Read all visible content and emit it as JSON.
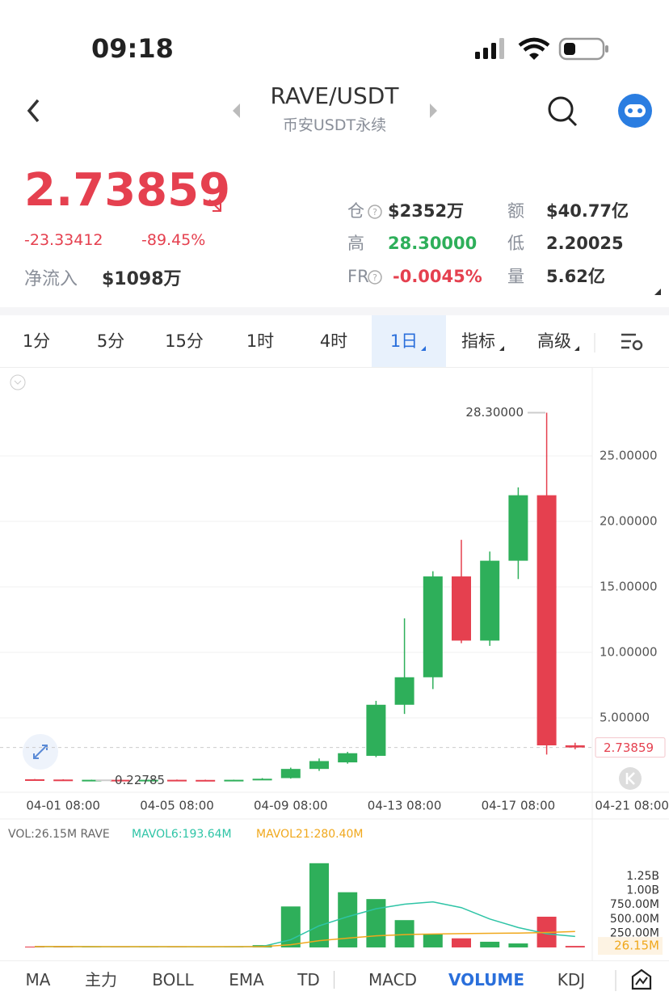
{
  "status_bar": {
    "time": "09:18"
  },
  "header": {
    "title": "RAVE/USDT",
    "subtitle": "币安USDT永续"
  },
  "price": {
    "last": "2.73859",
    "change": "-23.33412",
    "change_pct": "-89.45%",
    "net_inflow_label": "净流入",
    "net_inflow": "$1098万"
  },
  "stats": [
    {
      "label": "仓",
      "value": "$2352万"
    },
    {
      "label": "额",
      "value": "$40.77亿"
    },
    {
      "label": "高",
      "value": "28.30000"
    },
    {
      "label": "低",
      "value": "2.20025"
    },
    {
      "label": "FR",
      "value": "-0.0045%"
    },
    {
      "label": "量",
      "value": "5.62亿"
    }
  ],
  "timeframes": [
    "1分",
    "5分",
    "15分",
    "1时",
    "4时",
    "1日",
    "指标",
    "高级"
  ],
  "indicator_tabs": [
    "MA",
    "主力",
    "BOLL",
    "EMA",
    "TD",
    "MACD",
    "VOLUME",
    "KDJ"
  ],
  "chart_data": [
    {
      "type": "candlestick",
      "categories": [
        null,
        "04-01 08:00",
        null,
        null,
        null,
        "04-05 08:00",
        null,
        null,
        null,
        "04-09 08:00",
        null,
        null,
        null,
        "04-13 08:00",
        null,
        null,
        null,
        "04-17 08:00",
        null,
        null,
        null,
        "04-21 08:00"
      ],
      "open": [
        0.31,
        0.29,
        0.25,
        0.27,
        0.26,
        0.27,
        0.26,
        0.25,
        0.27,
        0.4,
        1.1,
        1.6,
        2.1,
        6.0,
        8.1,
        15.8,
        10.9,
        17.0,
        22.0,
        2.9,
        null,
        null
      ],
      "high": [
        0.33,
        0.31,
        0.28,
        0.29,
        0.28,
        0.29,
        0.28,
        0.28,
        0.4,
        1.2,
        1.9,
        2.4,
        6.3,
        12.6,
        16.2,
        18.6,
        17.7,
        22.6,
        28.3,
        3.1,
        null,
        null
      ],
      "low": [
        0.27,
        0.25,
        0.22785,
        0.25,
        0.25,
        0.25,
        0.24,
        0.24,
        0.25,
        0.36,
        0.95,
        1.5,
        2.0,
        5.3,
        7.2,
        10.7,
        10.5,
        15.6,
        2.2,
        2.6,
        null,
        null
      ],
      "close": [
        0.29,
        0.26,
        0.27,
        0.26,
        0.27,
        0.26,
        0.25,
        0.27,
        0.35,
        1.1,
        1.7,
        2.3,
        6.0,
        8.1,
        15.8,
        10.9,
        17.0,
        22.0,
        2.9,
        2.73859,
        null,
        null
      ],
      "up_color": "#2eaf5a",
      "down_color": "#e5404f",
      "ylim": [
        -0.68,
        31.73
      ],
      "yticks": [
        {
          "value": 5,
          "label": "5.00000"
        },
        {
          "value": 10,
          "label": "10.00000"
        },
        {
          "value": 15,
          "label": "15.00000"
        },
        {
          "value": 20,
          "label": "20.00000"
        },
        {
          "value": 25,
          "label": "25.00000"
        }
      ],
      "last_price": 2.73859,
      "max_label": {
        "value": 28.3,
        "label": "28.30000"
      },
      "min_label": 0.22785
    },
    {
      "type": "bar",
      "series": [
        {
          "name": "VOL:26.15M RAVE",
          "color": "#666666",
          "values": [
            15,
            12,
            10,
            10,
            12,
            10,
            12,
            15,
            40,
            720,
            1480,
            970,
            850,
            480,
            230,
            160,
            100,
            70,
            540,
            26.15,
            null,
            null
          ]
        },
        {
          "name": "MAVOL6:193.64M",
          "color": "#2ec4a6",
          "values": [
            14,
            14,
            13,
            12,
            12,
            12,
            11,
            12,
            16,
            135,
            380,
            540,
            680,
            760,
            800,
            700,
            500,
            350,
            240,
            193.64,
            null,
            null
          ]
        },
        {
          "name": "MAVOL21:280.40M",
          "color": "#f0a81c",
          "values": [
            15,
            15,
            14,
            14,
            13,
            13,
            13,
            13,
            14,
            48,
            118,
            163,
            204,
            226,
            236,
            243,
            248,
            252,
            262,
            280.4,
            null,
            null
          ]
        }
      ],
      "ylim": [
        -43,
        1804
      ],
      "yticks": [
        {
          "value": 250,
          "label": "250.00M"
        },
        {
          "value": 500,
          "label": "500.00M"
        },
        {
          "value": 750,
          "label": "750.00M"
        },
        {
          "value": 1000,
          "label": "1.00B"
        },
        {
          "value": 1250,
          "label": "1.25B"
        }
      ],
      "last_value": {
        "value": 26.15,
        "label": "26.15M"
      }
    }
  ]
}
